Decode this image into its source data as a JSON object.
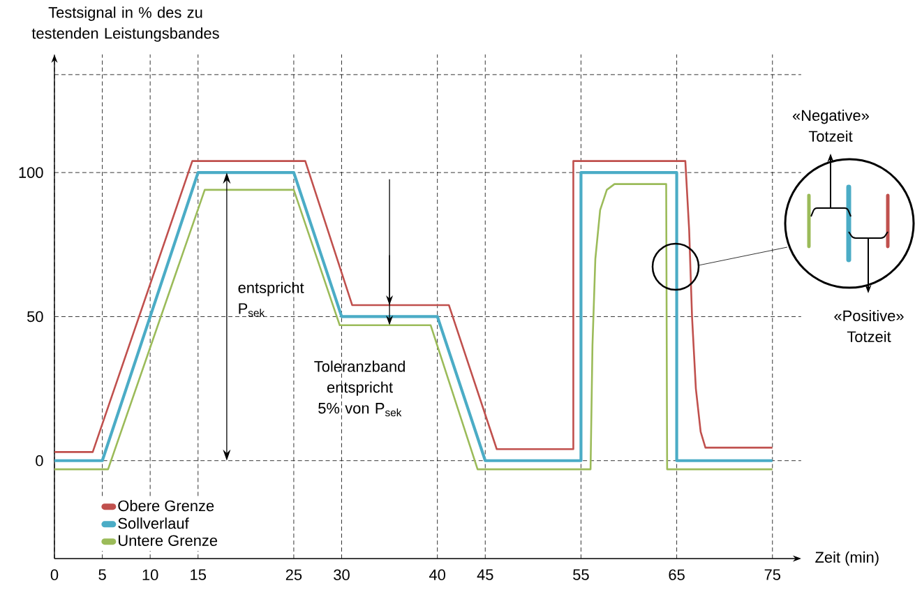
{
  "chart_data": {
    "type": "line",
    "ylabel": "Testsignal in % des zu testenden Leistungsbandes",
    "xlabel": "Zeit (min)",
    "xlim": [
      0,
      78
    ],
    "ylim": [
      -34,
      141
    ],
    "xticks": [
      0,
      5,
      10,
      15,
      25,
      30,
      40,
      45,
      55,
      65,
      75
    ],
    "yticks": [
      0,
      50,
      100,
      {
        "value": 134,
        "label": null
      }
    ],
    "grid": true,
    "legend": "bottom left",
    "marker": "none",
    "line_style": "solid",
    "series": [
      {
        "name": "Obere Grenze",
        "color": "#c0504d",
        "x": [
          0,
          4,
          14.4,
          26.2,
          31.1,
          41.2,
          46.2,
          54.2,
          54.2,
          65.9,
          66.3,
          66.6,
          67,
          67.5,
          68,
          75
        ],
        "values": [
          3,
          3,
          104,
          104,
          54,
          54,
          4,
          4,
          104,
          104,
          80,
          50,
          25,
          10,
          4.5,
          4.5
        ]
      },
      {
        "name": "Sollverlauf",
        "color": "#4bacc6",
        "x": [
          0,
          5,
          15,
          25,
          30,
          40,
          45,
          55,
          55,
          65,
          65,
          75
        ],
        "values": [
          0,
          0,
          100,
          100,
          50,
          50,
          0,
          0,
          100,
          100,
          0,
          0
        ]
      },
      {
        "name": "Untere Grenze",
        "color": "#9bbb59",
        "x": [
          0,
          5.6,
          15.7,
          25,
          29.8,
          39.3,
          44.2,
          56,
          56.2,
          56.5,
          57,
          57.7,
          58.5,
          63.9,
          64,
          75
        ],
        "values": [
          -3,
          -3,
          94,
          94,
          47,
          47,
          -3,
          -3,
          40,
          70,
          87,
          94,
          96,
          96,
          -3,
          -3
        ]
      }
    ],
    "annotations": [
      "entspricht P$_{sek}$",
      "Toleranzband entspricht 5% von P$_{sek}$",
      "«Negative» Totzeit",
      "«Positive» Totzeit"
    ]
  }
}
